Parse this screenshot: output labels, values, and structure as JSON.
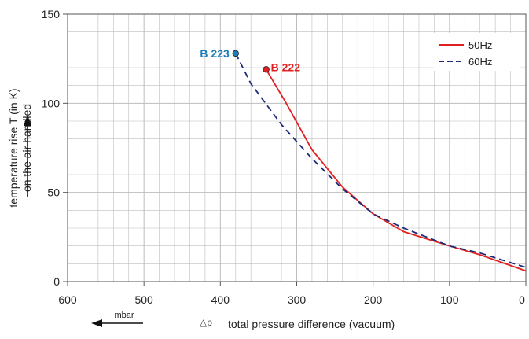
{
  "chart_data": {
    "type": "line",
    "xlabel": "total pressure difference (vacuum)",
    "xlabel_symbol": "△p",
    "xunit": "mbar",
    "ylabel_line1": "temperature rise T (in K)",
    "ylabel_line2": "on the air handled",
    "xlim": [
      600,
      0
    ],
    "ylim": [
      0,
      150
    ],
    "x_reversed": true,
    "x_ticks": [
      600,
      500,
      400,
      300,
      200,
      100,
      0
    ],
    "y_ticks": [
      0,
      50,
      100,
      150
    ],
    "grid": true,
    "legend_position": "top-right",
    "series": [
      {
        "name": "50Hz",
        "color": "#e02020",
        "style": "solid",
        "points": [
          [
            340,
            119
          ],
          [
            315,
            101
          ],
          [
            280,
            74
          ],
          [
            240,
            53
          ],
          [
            200,
            38
          ],
          [
            160,
            28
          ],
          [
            100,
            20
          ],
          [
            60,
            15
          ],
          [
            0,
            6
          ]
        ]
      },
      {
        "name": "60Hz",
        "color": "#1e2a78",
        "style": "dashed",
        "points": [
          [
            380,
            128
          ],
          [
            360,
            111
          ],
          [
            320,
            88
          ],
          [
            280,
            69
          ],
          [
            240,
            52
          ],
          [
            200,
            38
          ],
          [
            160,
            30
          ],
          [
            100,
            20
          ],
          [
            60,
            16
          ],
          [
            0,
            8
          ]
        ]
      }
    ],
    "annotations": [
      {
        "text": "B 223",
        "x": 380,
        "y": 128,
        "color": "#1a7fb8"
      },
      {
        "text": "B 222",
        "x": 340,
        "y": 119,
        "color": "#e02020"
      }
    ]
  }
}
